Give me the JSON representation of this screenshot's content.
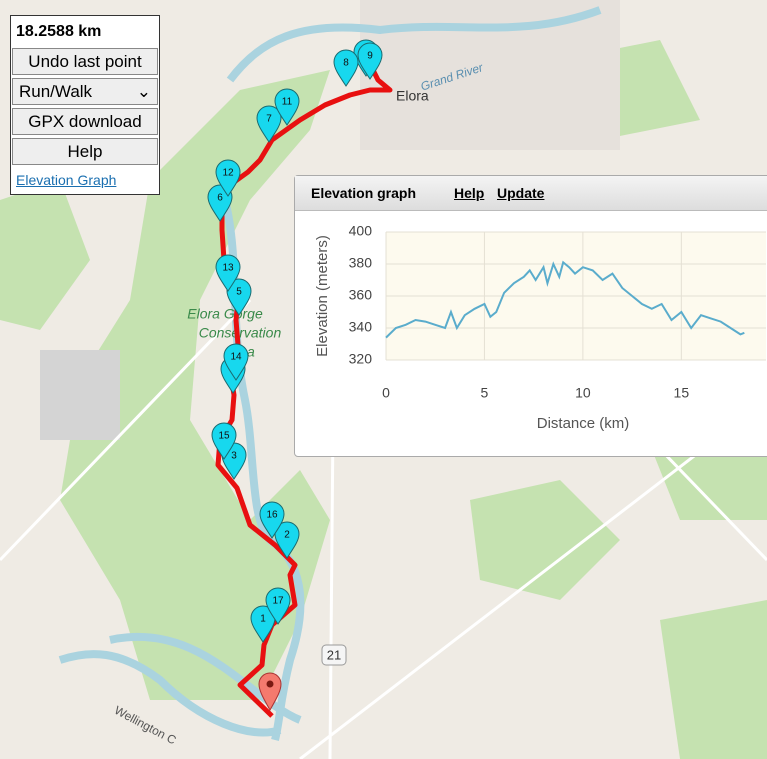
{
  "panel": {
    "distance": "18.2588 km",
    "undo": "Undo last point",
    "mode": "Run/Walk",
    "gpx": "GPX download",
    "help": "Help",
    "elevation_link": "Elevation Graph"
  },
  "map": {
    "town": "Elora",
    "river": "Grand River",
    "park": [
      "Elora Gorge",
      "Conservation",
      "Area"
    ],
    "road": "21",
    "road_name": "Wellington C",
    "markers": [
      "1",
      "2",
      "3",
      "4",
      "5",
      "6",
      "7",
      "8",
      "9",
      "10",
      "11",
      "12",
      "13",
      "14",
      "15",
      "16",
      "17"
    ]
  },
  "popup": {
    "title": "Elevation graph",
    "help": "Help",
    "update": "Update"
  },
  "chart_data": {
    "type": "line",
    "x_label": "Distance (km)",
    "y_label": "Elevation (meters)",
    "color": "#5aaccc",
    "grid": true,
    "xlim": [
      0,
      19.3
    ],
    "ylim": [
      320,
      400
    ],
    "xticks": [
      0,
      5,
      10,
      15
    ],
    "yticks": [
      320,
      340,
      360,
      380,
      400
    ],
    "x": [
      0,
      0.5,
      1,
      1.5,
      2,
      2.5,
      3,
      3.3,
      3.6,
      4,
      4.5,
      5,
      5.3,
      5.6,
      6,
      6.5,
      7,
      7.3,
      7.6,
      8,
      8.2,
      8.5,
      8.8,
      9,
      9.3,
      9.6,
      10,
      10.5,
      11,
      11.5,
      12,
      12.5,
      13,
      13.5,
      14,
      14.5,
      15,
      15.5,
      16,
      16.5,
      17,
      17.5,
      18,
      18.2
    ],
    "values": [
      334,
      340,
      342,
      345,
      344,
      342,
      340,
      350,
      340,
      348,
      352,
      355,
      347,
      350,
      362,
      368,
      372,
      376,
      370,
      378,
      368,
      380,
      372,
      381,
      378,
      374,
      378,
      376,
      370,
      374,
      365,
      360,
      355,
      352,
      355,
      345,
      350,
      340,
      348,
      346,
      344,
      340,
      336,
      337
    ]
  }
}
